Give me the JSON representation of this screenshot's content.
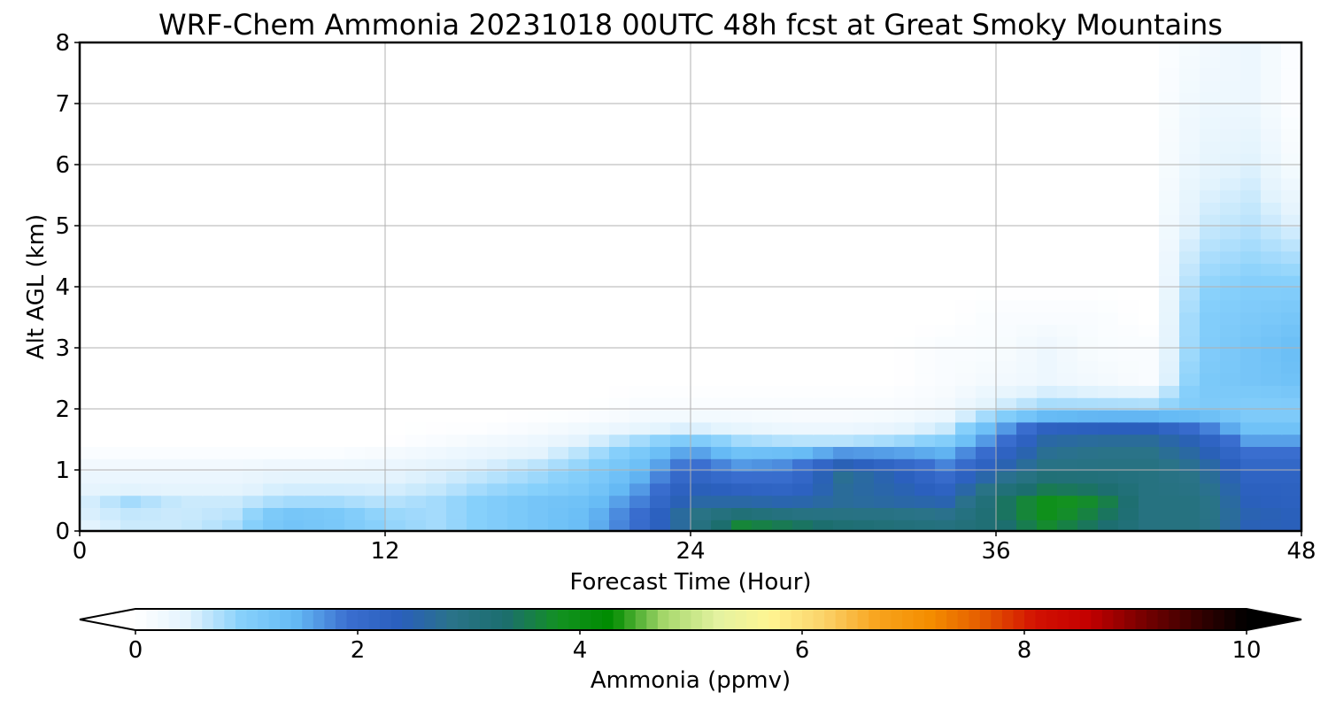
{
  "chart_data": {
    "type": "heatmap",
    "title": "WRF-Chem Ammonia  20231018 00UTC 48h fcst at Great Smoky Mountains",
    "xlabel": "Forecast Time (Hour)",
    "ylabel": "Alt AGL (km)",
    "xlim": [
      0,
      48
    ],
    "ylim": [
      0,
      8
    ],
    "xticks": [
      0,
      12,
      24,
      36,
      48
    ],
    "yticks": [
      0,
      1,
      2,
      3,
      4,
      5,
      6,
      7,
      8
    ],
    "grid": true,
    "colorbar": {
      "label": "Ammonia  (ppmv)",
      "orientation": "horizontal",
      "placement": "bottom",
      "range": [
        0,
        10
      ],
      "ticks": [
        0,
        2,
        4,
        6,
        8,
        10
      ],
      "extend": "both",
      "colors": [
        "#ffffff",
        "#e3f3fd",
        "#87d0fb",
        "#66bbf5",
        "#3b6fd0",
        "#2a5fbd",
        "#2a7388",
        "#1c6e6e",
        "#139121",
        "#008c00",
        "#a7d86c",
        "#e3f2a0",
        "#fff592",
        "#fbd36a",
        "#f8a41e",
        "#f48e00",
        "#e55c00",
        "#d21202",
        "#c40000",
        "#7a0000",
        "#3b0000",
        "#000000"
      ]
    },
    "hours": [
      0,
      2,
      4,
      6,
      8,
      10,
      12,
      14,
      16,
      18,
      20,
      22,
      24,
      26,
      28,
      30,
      32,
      34,
      36,
      38,
      40,
      42,
      44,
      46,
      48
    ],
    "levels_km": [
      0,
      0.25,
      0.5,
      0.75,
      1,
      1.25,
      1.5,
      1.75,
      2,
      2.5,
      3,
      3.5,
      4,
      5,
      6,
      7,
      8
    ],
    "values": [
      [
        0.4,
        0.6,
        0.6,
        0.8,
        1.2,
        1.1,
        0.9,
        0.8,
        1.0,
        1.2,
        1.4,
        2.0,
        2.8,
        3.9,
        3.7,
        3.4,
        3.2,
        3.1,
        3.2,
        3.6,
        3.3,
        3.0,
        3.0,
        2.4,
        2.4
      ],
      [
        0.5,
        0.6,
        0.6,
        0.7,
        1.3,
        1.2,
        0.9,
        0.8,
        1.0,
        1.2,
        1.4,
        2.0,
        2.9,
        3.3,
        3.1,
        3.0,
        3.0,
        2.9,
        3.3,
        3.9,
        3.5,
        3.0,
        3.0,
        2.5,
        2.4
      ],
      [
        0.5,
        0.8,
        0.6,
        0.6,
        0.8,
        0.8,
        0.7,
        0.8,
        1.0,
        1.2,
        1.3,
        1.8,
        2.6,
        2.6,
        2.5,
        2.7,
        2.6,
        2.5,
        3.3,
        3.9,
        3.7,
        3.0,
        3.0,
        2.4,
        2.3
      ],
      [
        0.4,
        0.4,
        0.4,
        0.4,
        0.5,
        0.5,
        0.5,
        0.6,
        0.8,
        0.9,
        1.1,
        1.6,
        2.4,
        2.2,
        2.1,
        2.7,
        2.5,
        2.2,
        3.0,
        3.4,
        3.3,
        3.0,
        2.9,
        2.3,
        2.3
      ],
      [
        0.3,
        0.3,
        0.3,
        0.3,
        0.4,
        0.4,
        0.4,
        0.5,
        0.6,
        0.8,
        1.0,
        1.4,
        2.1,
        1.8,
        1.9,
        2.8,
        2.4,
        1.9,
        2.5,
        3.0,
        3.0,
        3.0,
        2.8,
        2.2,
        2.2
      ],
      [
        0.1,
        0.1,
        0.1,
        0.1,
        0.1,
        0.1,
        0.2,
        0.3,
        0.4,
        0.5,
        0.8,
        1.2,
        1.8,
        1.4,
        1.5,
        1.9,
        1.8,
        1.6,
        2.2,
        2.8,
        2.9,
        2.9,
        2.6,
        2.0,
        2.0
      ],
      [
        0.0,
        0.0,
        0.0,
        0.0,
        0.0,
        0.0,
        0.0,
        0.1,
        0.2,
        0.3,
        0.5,
        0.8,
        1.1,
        0.8,
        0.7,
        0.7,
        0.8,
        1.0,
        1.8,
        2.6,
        2.7,
        2.7,
        2.4,
        1.6,
        1.6
      ],
      [
        0.0,
        0.0,
        0.0,
        0.0,
        0.0,
        0.0,
        0.0,
        0.0,
        0.0,
        0.1,
        0.2,
        0.3,
        0.4,
        0.3,
        0.2,
        0.2,
        0.3,
        0.5,
        1.4,
        2.2,
        2.3,
        2.3,
        1.8,
        1.2,
        1.2
      ],
      [
        0.0,
        0.0,
        0.0,
        0.0,
        0.0,
        0.0,
        0.0,
        0.0,
        0.0,
        0.0,
        0.0,
        0.1,
        0.1,
        0.1,
        0.1,
        0.1,
        0.1,
        0.2,
        0.6,
        0.9,
        0.9,
        0.9,
        1.1,
        1.0,
        1.0
      ],
      [
        0.0,
        0.0,
        0.0,
        0.0,
        0.0,
        0.0,
        0.0,
        0.0,
        0.0,
        0.0,
        0.0,
        0.0,
        0.0,
        0.0,
        0.0,
        0.0,
        0.0,
        0.1,
        0.2,
        0.3,
        0.2,
        0.1,
        1.1,
        1.2,
        1.3
      ],
      [
        0.0,
        0.0,
        0.0,
        0.0,
        0.0,
        0.0,
        0.0,
        0.0,
        0.0,
        0.0,
        0.0,
        0.0,
        0.0,
        0.0,
        0.0,
        0.0,
        0.0,
        0.1,
        0.1,
        0.3,
        0.1,
        0.1,
        1.0,
        1.2,
        1.4
      ],
      [
        0.0,
        0.0,
        0.0,
        0.0,
        0.0,
        0.0,
        0.0,
        0.0,
        0.0,
        0.0,
        0.0,
        0.0,
        0.0,
        0.0,
        0.0,
        0.0,
        0.0,
        0.0,
        0.1,
        0.1,
        0.1,
        0.0,
        1.0,
        1.1,
        1.2
      ],
      [
        0.0,
        0.0,
        0.0,
        0.0,
        0.0,
        0.0,
        0.0,
        0.0,
        0.0,
        0.0,
        0.0,
        0.0,
        0.0,
        0.0,
        0.0,
        0.0,
        0.0,
        0.0,
        0.0,
        0.0,
        0.0,
        0.0,
        0.9,
        1.0,
        1.0
      ],
      [
        0.0,
        0.0,
        0.0,
        0.0,
        0.0,
        0.0,
        0.0,
        0.0,
        0.0,
        0.0,
        0.0,
        0.0,
        0.0,
        0.0,
        0.0,
        0.0,
        0.0,
        0.0,
        0.0,
        0.0,
        0.0,
        0.0,
        0.6,
        0.7,
        0.5
      ],
      [
        0.0,
        0.0,
        0.0,
        0.0,
        0.0,
        0.0,
        0.0,
        0.0,
        0.0,
        0.0,
        0.0,
        0.0,
        0.0,
        0.0,
        0.0,
        0.0,
        0.0,
        0.0,
        0.0,
        0.0,
        0.0,
        0.0,
        0.4,
        0.5,
        0.1
      ],
      [
        0.0,
        0.0,
        0.0,
        0.0,
        0.0,
        0.0,
        0.0,
        0.0,
        0.0,
        0.0,
        0.0,
        0.0,
        0.0,
        0.0,
        0.0,
        0.0,
        0.0,
        0.0,
        0.0,
        0.0,
        0.0,
        0.0,
        0.3,
        0.3,
        0.0
      ],
      [
        0.0,
        0.0,
        0.0,
        0.0,
        0.0,
        0.0,
        0.0,
        0.0,
        0.0,
        0.0,
        0.0,
        0.0,
        0.0,
        0.0,
        0.0,
        0.0,
        0.0,
        0.0,
        0.0,
        0.0,
        0.0,
        0.0,
        0.2,
        0.3,
        0.0
      ]
    ]
  }
}
